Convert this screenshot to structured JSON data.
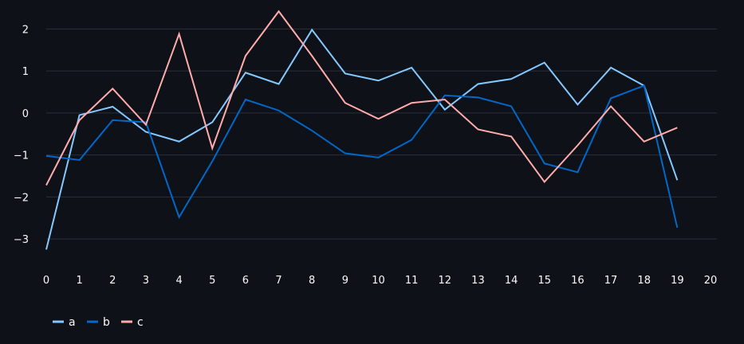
{
  "chart_data": {
    "type": "line",
    "title": "",
    "xlabel": "",
    "ylabel": "",
    "x": [
      0,
      1,
      2,
      3,
      4,
      5,
      6,
      7,
      8,
      9,
      10,
      11,
      12,
      13,
      14,
      15,
      16,
      17,
      18,
      19
    ],
    "xlim": [
      0,
      20
    ],
    "ylim": [
      -3.3,
      2.5
    ],
    "x_ticks": [
      "0",
      "1",
      "2",
      "3",
      "4",
      "5",
      "6",
      "7",
      "8",
      "9",
      "10",
      "11",
      "12",
      "13",
      "14",
      "15",
      "16",
      "17",
      "18",
      "19",
      "20"
    ],
    "y_ticks": [
      -3,
      -2,
      -1,
      0,
      1,
      2
    ],
    "y_tick_labels": [
      "−3",
      "−2",
      "−1",
      "0",
      "1",
      "2"
    ],
    "grid": "horizontal",
    "legend_position": "bottom-left",
    "series": [
      {
        "name": "a",
        "color": "#83c9ff",
        "values": [
          -3.25,
          -0.05,
          0.15,
          -0.45,
          -0.68,
          -0.22,
          0.96,
          0.69,
          1.98,
          0.94,
          0.77,
          1.08,
          0.08,
          0.69,
          0.81,
          1.2,
          0.2,
          1.08,
          0.65,
          -1.6
        ]
      },
      {
        "name": "b",
        "color": "#0068c9",
        "values": [
          -1.02,
          -1.12,
          -0.17,
          -0.22,
          -2.48,
          -1.15,
          0.32,
          0.06,
          -0.42,
          -0.96,
          -1.06,
          -0.64,
          0.42,
          0.37,
          0.16,
          -1.2,
          -1.41,
          0.35,
          0.65,
          -2.73
        ]
      },
      {
        "name": "c",
        "color": "#ffabab",
        "values": [
          -1.72,
          -0.17,
          0.58,
          -0.28,
          1.88,
          -0.84,
          1.36,
          2.42,
          1.36,
          0.24,
          -0.14,
          0.24,
          0.32,
          -0.39,
          -0.56,
          -1.64,
          -0.77,
          0.16,
          -0.68,
          -0.35
        ]
      }
    ]
  }
}
